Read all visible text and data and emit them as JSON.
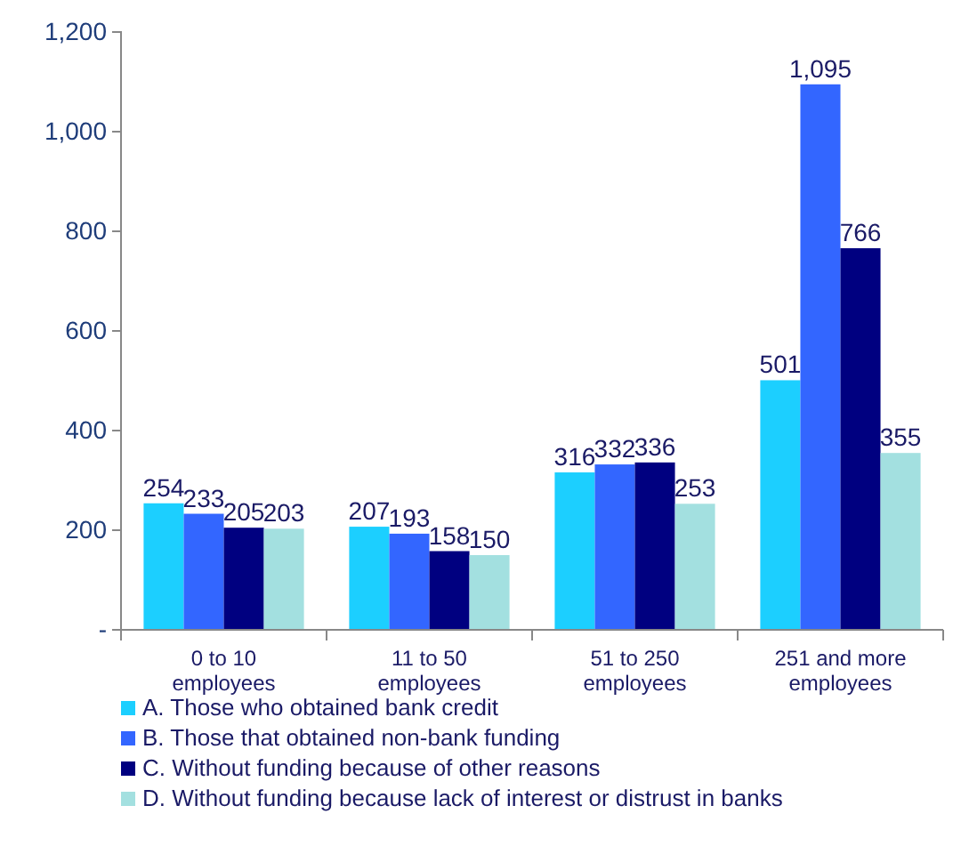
{
  "chart_data": {
    "type": "bar",
    "categories": [
      "0 to 10 employees",
      "11 to 50 employees",
      "51 to 250 employees",
      "251 and more employees"
    ],
    "series": [
      {
        "name": "A. Those who obtained bank credit",
        "color": "#1ccfff",
        "values": [
          254,
          207,
          316,
          501
        ],
        "value_labels": [
          "254",
          "207",
          "316",
          "501"
        ]
      },
      {
        "name": "B. Those that obtained non-bank funding",
        "color": "#3366ff",
        "values": [
          233,
          193,
          332,
          1095
        ],
        "value_labels": [
          "233",
          "193",
          "332",
          "1,095"
        ]
      },
      {
        "name": "C. Without funding because of other reasons",
        "color": "#000080",
        "values": [
          205,
          158,
          336,
          766
        ],
        "value_labels": [
          "205",
          "158",
          "336",
          "766"
        ]
      },
      {
        "name": "D. Without funding because lack of interest or distrust in banks",
        "color": "#a3e0e0",
        "values": [
          203,
          150,
          253,
          355
        ],
        "value_labels": [
          "203",
          "150",
          "253",
          "355"
        ]
      }
    ],
    "ylim": [
      0,
      1200
    ],
    "yticks": [
      {
        "value": 0,
        "label": "-"
      },
      200,
      400,
      600,
      800,
      {
        "value": 1000,
        "label": "1,000"
      },
      {
        "value": 1200,
        "label": "1,200"
      }
    ],
    "grid": false,
    "legend": "bottom"
  }
}
